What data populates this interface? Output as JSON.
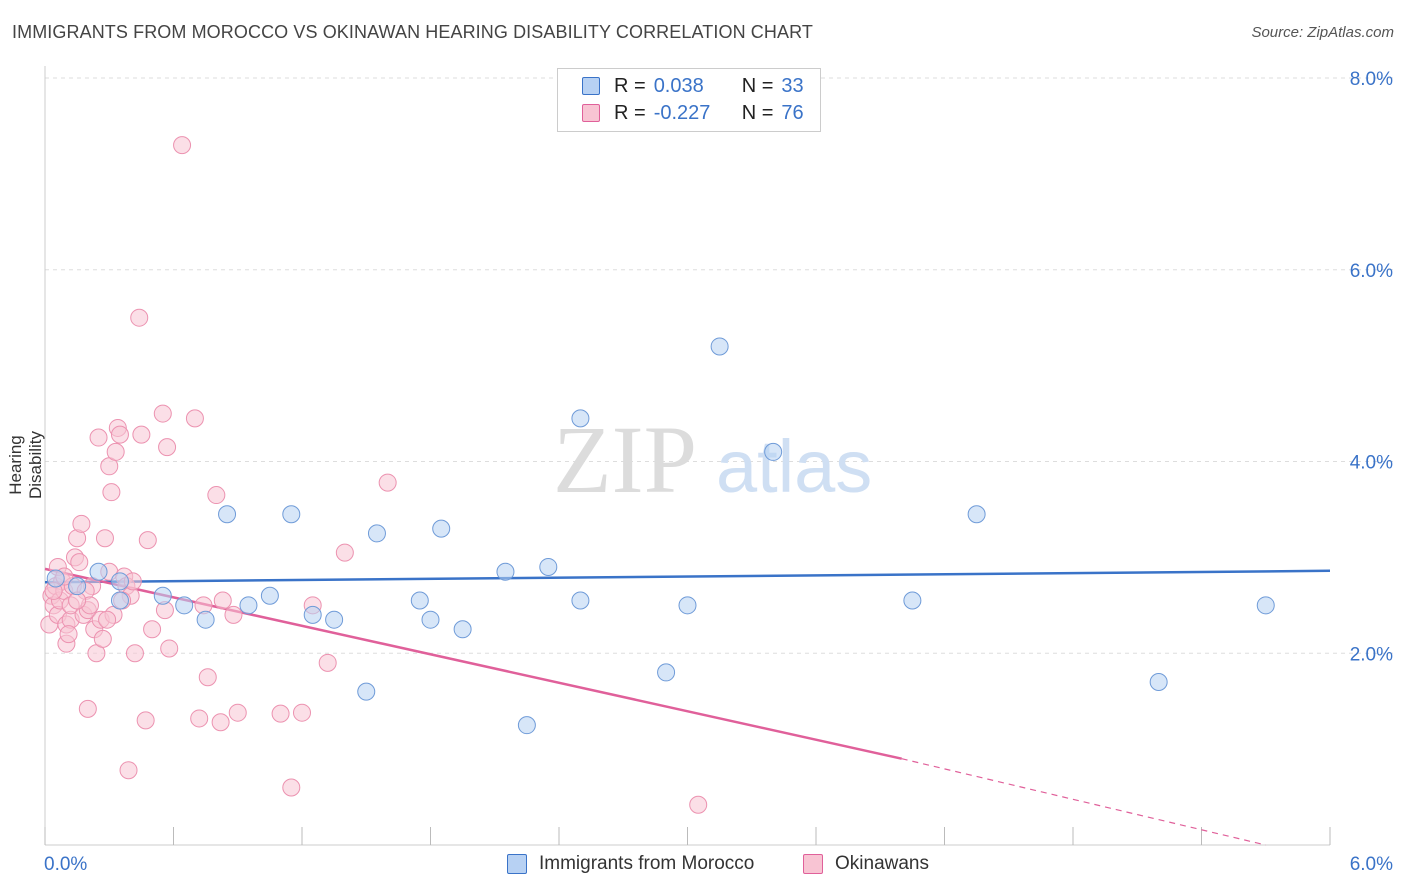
{
  "header": {
    "title": "IMMIGRANTS FROM MOROCCO VS OKINAWAN HEARING DISABILITY CORRELATION CHART",
    "source": "Source: ZipAtlas.com"
  },
  "watermark": {
    "zip": "ZIP",
    "atlas": "atlas"
  },
  "legend": {
    "rows": [
      {
        "r_label": "R =",
        "r_value": "0.038",
        "n_label": "N =",
        "n_value": "33",
        "color": "#a9c8f2"
      },
      {
        "r_label": "R =",
        "r_value": "-0.227",
        "n_label": "N =",
        "n_value": "76",
        "color": "#f6b8c8"
      }
    ]
  },
  "bottom_legend": [
    {
      "label": "Immigrants from Morocco",
      "color": "#a9c8f2"
    },
    {
      "label": "Okinawans",
      "color": "#f6b8c8"
    }
  ],
  "colors": {
    "blue": "#3a73c8",
    "pink": "#e0609a",
    "blue_fill": "#b7d1f3",
    "pink_fill": "#f8c4d3",
    "grid": "#dddddd",
    "tick_label": "#3a73c8"
  },
  "chart_data": {
    "type": "scatter",
    "title": "IMMIGRANTS FROM MOROCCO VS OKINAWAN HEARING DISABILITY CORRELATION CHART",
    "xlabel": "",
    "ylabel": "Hearing Disability",
    "xlim": [
      0,
      6
    ],
    "ylim": [
      0,
      8
    ],
    "x_tick_labels": [
      "0.0%",
      "6.0%"
    ],
    "y_ticks": [
      2,
      4,
      6,
      8
    ],
    "y_tick_labels": [
      "2.0%",
      "4.0%",
      "6.0%",
      "8.0%"
    ],
    "grid": true,
    "legend_position": "top-center",
    "series": [
      {
        "name": "Immigrants from Morocco",
        "color": "#3a73c8",
        "points": [
          [
            0.05,
            2.78
          ],
          [
            0.25,
            2.85
          ],
          [
            0.35,
            2.75
          ],
          [
            0.35,
            2.55
          ],
          [
            0.55,
            2.6
          ],
          [
            0.65,
            2.5
          ],
          [
            0.75,
            2.35
          ],
          [
            0.85,
            3.45
          ],
          [
            0.95,
            2.5
          ],
          [
            1.05,
            2.6
          ],
          [
            1.15,
            3.45
          ],
          [
            1.25,
            2.4
          ],
          [
            1.35,
            2.35
          ],
          [
            1.5,
            1.6
          ],
          [
            1.55,
            3.25
          ],
          [
            1.75,
            2.55
          ],
          [
            1.8,
            2.35
          ],
          [
            1.85,
            3.3
          ],
          [
            1.95,
            2.25
          ],
          [
            2.15,
            2.85
          ],
          [
            2.25,
            1.25
          ],
          [
            2.35,
            2.9
          ],
          [
            2.5,
            4.45
          ],
          [
            2.5,
            2.55
          ],
          [
            2.9,
            1.8
          ],
          [
            3.0,
            2.5
          ],
          [
            3.15,
            5.2
          ],
          [
            3.4,
            4.1
          ],
          [
            4.05,
            2.55
          ],
          [
            4.35,
            3.45
          ],
          [
            5.2,
            1.7
          ],
          [
            5.7,
            2.5
          ],
          [
            0.15,
            2.7
          ]
        ],
        "trend": {
          "x": [
            0,
            6
          ],
          "y": [
            2.74,
            2.86
          ]
        }
      },
      {
        "name": "Okinawans",
        "color": "#e0609a",
        "points": [
          [
            0.02,
            2.3
          ],
          [
            0.03,
            2.6
          ],
          [
            0.04,
            2.5
          ],
          [
            0.05,
            2.7
          ],
          [
            0.06,
            2.4
          ],
          [
            0.07,
            2.55
          ],
          [
            0.08,
            2.75
          ],
          [
            0.09,
            2.65
          ],
          [
            0.1,
            2.1
          ],
          [
            0.1,
            2.3
          ],
          [
            0.12,
            2.35
          ],
          [
            0.12,
            2.5
          ],
          [
            0.13,
            2.7
          ],
          [
            0.14,
            3.0
          ],
          [
            0.15,
            3.2
          ],
          [
            0.16,
            2.95
          ],
          [
            0.17,
            3.35
          ],
          [
            0.18,
            2.4
          ],
          [
            0.2,
            2.45
          ],
          [
            0.2,
            1.42
          ],
          [
            0.22,
            2.7
          ],
          [
            0.23,
            2.25
          ],
          [
            0.24,
            2.0
          ],
          [
            0.25,
            4.25
          ],
          [
            0.26,
            2.35
          ],
          [
            0.27,
            2.15
          ],
          [
            0.28,
            3.2
          ],
          [
            0.3,
            2.85
          ],
          [
            0.3,
            3.95
          ],
          [
            0.31,
            3.68
          ],
          [
            0.32,
            2.4
          ],
          [
            0.33,
            4.1
          ],
          [
            0.34,
            4.35
          ],
          [
            0.35,
            4.28
          ],
          [
            0.37,
            2.8
          ],
          [
            0.38,
            2.7
          ],
          [
            0.39,
            0.78
          ],
          [
            0.4,
            2.6
          ],
          [
            0.42,
            2.0
          ],
          [
            0.44,
            5.5
          ],
          [
            0.45,
            4.28
          ],
          [
            0.47,
            1.3
          ],
          [
            0.48,
            3.18
          ],
          [
            0.5,
            2.25
          ],
          [
            0.55,
            4.5
          ],
          [
            0.56,
            2.45
          ],
          [
            0.57,
            4.15
          ],
          [
            0.58,
            2.05
          ],
          [
            0.64,
            7.3
          ],
          [
            0.7,
            4.45
          ],
          [
            0.72,
            1.32
          ],
          [
            0.74,
            2.5
          ],
          [
            0.76,
            1.75
          ],
          [
            0.8,
            3.65
          ],
          [
            0.82,
            1.28
          ],
          [
            0.83,
            2.55
          ],
          [
            0.88,
            2.4
          ],
          [
            0.9,
            1.38
          ],
          [
            1.1,
            1.37
          ],
          [
            1.15,
            0.6
          ],
          [
            1.2,
            1.38
          ],
          [
            1.25,
            2.5
          ],
          [
            1.32,
            1.9
          ],
          [
            1.4,
            3.05
          ],
          [
            1.6,
            3.78
          ],
          [
            3.05,
            0.42
          ],
          [
            0.06,
            2.9
          ],
          [
            0.09,
            2.8
          ],
          [
            0.19,
            2.65
          ],
          [
            0.21,
            2.5
          ],
          [
            0.29,
            2.35
          ],
          [
            0.36,
            2.55
          ],
          [
            0.41,
            2.75
          ],
          [
            0.11,
            2.2
          ],
          [
            0.15,
            2.55
          ],
          [
            0.04,
            2.65
          ]
        ],
        "trend": {
          "x": [
            0,
            4.0
          ],
          "y": [
            2.88,
            0.9
          ]
        },
        "trend_dashed": {
          "x": [
            4.0,
            5.7
          ],
          "y": [
            0.9,
            0.0
          ]
        }
      }
    ]
  }
}
